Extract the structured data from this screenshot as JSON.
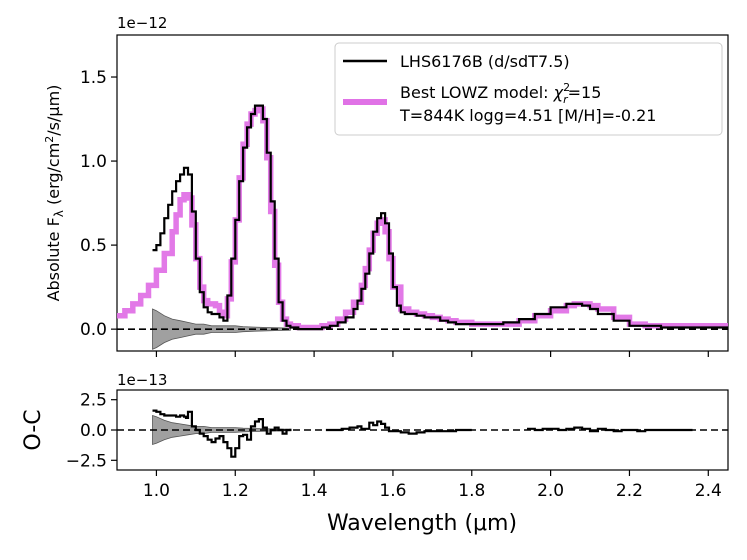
{
  "chart_data": [
    {
      "type": "line",
      "panel": "main",
      "title": "",
      "xlabel": "",
      "ylabel_prefix": "Absolute  F",
      "ylabel_sub": "λ",
      "ylabel_rest": " (erg/cm",
      "ylabel_sup": "2",
      "ylabel_end": "/s/μm)",
      "offset_label": "1e−12",
      "xlim": [
        0.9,
        2.45
      ],
      "ylim": [
        -0.13,
        1.75
      ],
      "xticks": [
        1.0,
        1.2,
        1.4,
        1.6,
        1.8,
        2.0,
        2.2,
        2.4
      ],
      "yticks": [
        0.0,
        0.5,
        1.0,
        1.5
      ],
      "ytick_labels": [
        "0.0",
        "0.5",
        "1.0",
        "1.5"
      ],
      "legend": {
        "position": "top-right",
        "entries": [
          {
            "label": "LHS6176B (d/sdT7.5)",
            "color": "#000000"
          },
          {
            "label_prefix": "Best LOWZ model: ",
            "label_chi": "χ",
            "label_chi_sup": "2",
            "label_chi_sub": "r",
            "label_suffix": "=15",
            "label_line2": "T=844K logg=4.51 [M/H]=-0.21",
            "color": "#e072e6"
          }
        ]
      },
      "series": [
        {
          "name": "LHS6176B (d/sdT7.5)",
          "color": "#000000",
          "x": [
            0.99,
            1.0,
            1.01,
            1.02,
            1.03,
            1.04,
            1.05,
            1.06,
            1.07,
            1.08,
            1.09,
            1.1,
            1.11,
            1.12,
            1.13,
            1.14,
            1.15,
            1.16,
            1.17,
            1.18,
            1.19,
            1.2,
            1.21,
            1.22,
            1.23,
            1.24,
            1.25,
            1.26,
            1.27,
            1.28,
            1.29,
            1.3,
            1.31,
            1.32,
            1.33,
            1.34,
            1.36,
            1.38,
            1.4,
            1.42,
            1.44,
            1.46,
            1.48,
            1.5,
            1.51,
            1.52,
            1.53,
            1.54,
            1.55,
            1.56,
            1.57,
            1.58,
            1.59,
            1.6,
            1.61,
            1.62,
            1.63,
            1.64,
            1.66,
            1.68,
            1.7,
            1.72,
            1.74,
            1.76,
            1.78,
            1.8,
            1.84,
            1.88,
            1.92,
            1.96,
            2.0,
            2.04,
            2.06,
            2.08,
            2.1,
            2.12,
            2.16,
            2.2,
            2.24,
            2.28,
            2.32,
            2.36,
            2.4,
            2.45
          ],
          "y": [
            0.47,
            0.5,
            0.57,
            0.66,
            0.74,
            0.82,
            0.88,
            0.92,
            0.96,
            0.92,
            0.7,
            0.42,
            0.22,
            0.13,
            0.1,
            0.09,
            0.09,
            0.07,
            0.05,
            0.2,
            0.42,
            0.65,
            0.88,
            1.08,
            1.2,
            1.28,
            1.33,
            1.33,
            1.25,
            1.05,
            0.76,
            0.42,
            0.16,
            0.05,
            0.02,
            0.01,
            0.0,
            0.0,
            0.0,
            0.01,
            0.02,
            0.04,
            0.07,
            0.12,
            0.17,
            0.24,
            0.33,
            0.45,
            0.58,
            0.66,
            0.69,
            0.63,
            0.45,
            0.25,
            0.14,
            0.1,
            0.09,
            0.09,
            0.08,
            0.07,
            0.07,
            0.05,
            0.04,
            0.03,
            0.03,
            0.03,
            0.03,
            0.04,
            0.06,
            0.09,
            0.13,
            0.15,
            0.15,
            0.14,
            0.12,
            0.09,
            0.05,
            0.02,
            0.02,
            0.01,
            0.01,
            0.01,
            0.01,
            0.01
          ]
        },
        {
          "name": "Best LOWZ model",
          "color": "#e072e6",
          "x": [
            0.9,
            0.92,
            0.94,
            0.96,
            0.98,
            1.0,
            1.02,
            1.04,
            1.05,
            1.06,
            1.07,
            1.08,
            1.09,
            1.1,
            1.11,
            1.12,
            1.13,
            1.14,
            1.15,
            1.16,
            1.17,
            1.18,
            1.19,
            1.2,
            1.21,
            1.22,
            1.23,
            1.24,
            1.25,
            1.26,
            1.27,
            1.28,
            1.29,
            1.3,
            1.31,
            1.32,
            1.33,
            1.34,
            1.36,
            1.38,
            1.4,
            1.42,
            1.44,
            1.46,
            1.48,
            1.5,
            1.52,
            1.53,
            1.54,
            1.55,
            1.56,
            1.57,
            1.58,
            1.59,
            1.6,
            1.62,
            1.64,
            1.66,
            1.68,
            1.7,
            1.72,
            1.74,
            1.76,
            1.8,
            1.84,
            1.88,
            1.92,
            1.96,
            2.0,
            2.04,
            2.06,
            2.08,
            2.1,
            2.12,
            2.16,
            2.2,
            2.24,
            2.28,
            2.32,
            2.36,
            2.4,
            2.45
          ],
          "y": [
            0.08,
            0.11,
            0.15,
            0.2,
            0.26,
            0.35,
            0.45,
            0.58,
            0.68,
            0.77,
            0.8,
            0.78,
            0.62,
            0.42,
            0.25,
            0.17,
            0.15,
            0.15,
            0.14,
            0.1,
            0.08,
            0.18,
            0.4,
            0.65,
            0.9,
            1.1,
            1.22,
            1.28,
            1.3,
            1.31,
            1.24,
            1.02,
            0.7,
            0.38,
            0.16,
            0.06,
            0.03,
            0.02,
            0.01,
            0.01,
            0.01,
            0.02,
            0.03,
            0.06,
            0.1,
            0.16,
            0.26,
            0.36,
            0.47,
            0.57,
            0.63,
            0.65,
            0.58,
            0.42,
            0.25,
            0.12,
            0.1,
            0.09,
            0.08,
            0.07,
            0.06,
            0.05,
            0.04,
            0.03,
            0.03,
            0.03,
            0.05,
            0.08,
            0.11,
            0.14,
            0.15,
            0.15,
            0.14,
            0.12,
            0.07,
            0.03,
            0.02,
            0.02,
            0.02,
            0.02,
            0.02,
            0.02
          ]
        },
        {
          "name": "zero-line",
          "color": "#000000",
          "dashed": true,
          "x": [
            0.9,
            2.45
          ],
          "y": [
            0.0,
            0.0
          ]
        }
      ],
      "uncertainty_band": {
        "color": "#808080",
        "x": [
          0.99,
          1.0,
          1.02,
          1.04,
          1.06,
          1.08,
          1.1,
          1.12,
          1.14,
          1.16,
          1.18,
          1.2,
          1.22,
          1.25,
          1.28,
          1.31,
          1.34
        ],
        "half_width": [
          0.12,
          0.11,
          0.08,
          0.06,
          0.05,
          0.04,
          0.03,
          0.03,
          0.02,
          0.02,
          0.02,
          0.02,
          0.015,
          0.012,
          0.01,
          0.008,
          0.006
        ]
      }
    },
    {
      "type": "line",
      "panel": "residual",
      "title": "",
      "xlabel": "Wavelength (μm)",
      "ylabel": "O-C",
      "offset_label": "1e−13",
      "xlim": [
        0.9,
        2.45
      ],
      "ylim": [
        -3.3,
        3.3
      ],
      "xticks": [
        1.0,
        1.2,
        1.4,
        1.6,
        1.8,
        2.0,
        2.2,
        2.4
      ],
      "xtick_labels": [
        "1.0",
        "1.2",
        "1.4",
        "1.6",
        "1.8",
        "2.0",
        "2.2",
        "2.4"
      ],
      "yticks": [
        -2.5,
        0.0,
        2.5
      ],
      "ytick_labels": [
        "−2.5",
        "0.0",
        "2.5"
      ],
      "series": [
        {
          "name": "residual",
          "color": "#000000",
          "segments": [
            {
              "x": [
                0.99,
                1.0,
                1.01,
                1.02,
                1.03,
                1.04,
                1.05,
                1.06,
                1.07,
                1.075,
                1.08,
                1.09,
                1.1,
                1.11,
                1.12,
                1.13,
                1.14,
                1.15,
                1.16,
                1.17,
                1.18,
                1.19,
                1.2,
                1.21,
                1.22,
                1.23,
                1.24,
                1.25,
                1.26,
                1.27,
                1.28,
                1.29,
                1.3,
                1.31,
                1.32,
                1.33,
                1.34
              ],
              "y": [
                1.6,
                1.5,
                1.3,
                1.2,
                1.2,
                1.2,
                1.1,
                1.2,
                1.1,
                1.0,
                1.5,
                0.3,
                0.0,
                -0.3,
                -0.5,
                -0.8,
                -1.0,
                -0.7,
                -0.5,
                -1.0,
                -1.5,
                -2.2,
                -1.5,
                -0.5,
                -0.4,
                -0.8,
                0.3,
                0.7,
                0.9,
                0.2,
                -0.3,
                0.0,
                0.2,
                0.0,
                -0.3,
                0.0,
                0.1
              ]
            },
            {
              "x": [
                1.43,
                1.45,
                1.47,
                1.49,
                1.5,
                1.51,
                1.52,
                1.53,
                1.54,
                1.55,
                1.56,
                1.57,
                1.58,
                1.59,
                1.6,
                1.62,
                1.64,
                1.66,
                1.68,
                1.7,
                1.72,
                1.74,
                1.76,
                1.78,
                1.8
              ],
              "y": [
                0.0,
                0.0,
                0.1,
                0.2,
                0.2,
                0.3,
                0.1,
                0.1,
                0.6,
                0.4,
                0.7,
                0.5,
                0.2,
                -0.1,
                -0.1,
                -0.2,
                -0.3,
                -0.2,
                -0.1,
                -0.1,
                -0.1,
                -0.1,
                0.0,
                0.0,
                0.0
              ]
            },
            {
              "x": [
                1.94,
                1.96,
                1.98,
                2.0,
                2.02,
                2.04,
                2.06,
                2.08,
                2.1,
                2.12,
                2.14,
                2.16,
                2.18,
                2.2,
                2.22,
                2.24,
                2.26,
                2.28,
                2.3,
                2.32,
                2.34,
                2.36
              ],
              "y": [
                0.1,
                0.0,
                0.1,
                0.1,
                0.0,
                0.1,
                0.2,
                0.1,
                -0.1,
                0.1,
                0.0,
                -0.1,
                0.0,
                0.0,
                -0.1,
                0.0,
                0.0,
                0.0,
                0.0,
                0.0,
                0.0,
                0.0
              ]
            }
          ]
        },
        {
          "name": "zero-line",
          "color": "#000000",
          "dashed": true,
          "x": [
            0.9,
            2.45
          ],
          "y": [
            0.0,
            0.0
          ]
        }
      ],
      "uncertainty_band": {
        "color": "#808080",
        "x": [
          0.99,
          1.0,
          1.02,
          1.04,
          1.06,
          1.08,
          1.1,
          1.12,
          1.14,
          1.16,
          1.18,
          1.2,
          1.22,
          1.25,
          1.28,
          1.31,
          1.34
        ],
        "half_width": [
          1.2,
          1.1,
          0.8,
          0.6,
          0.5,
          0.4,
          0.3,
          0.3,
          0.2,
          0.2,
          0.2,
          0.2,
          0.15,
          0.12,
          0.1,
          0.08,
          0.06
        ]
      }
    }
  ]
}
